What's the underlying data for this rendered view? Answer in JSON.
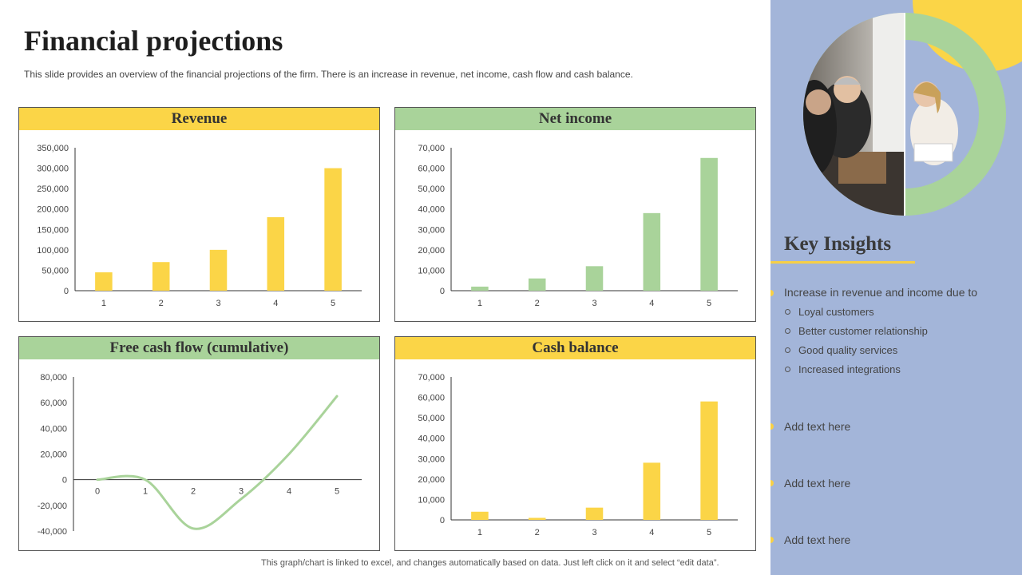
{
  "header": {
    "title": "Financial projections",
    "subtitle": "This slide provides an overview of the financial projections of the firm. There is an increase in revenue, net income, cash flow and  cash balance."
  },
  "colors": {
    "yellow": "#fbd547",
    "green": "#a9d39a",
    "sidebar": "#a3b5d9"
  },
  "chart_data": [
    {
      "id": "revenue",
      "type": "bar",
      "title": "Revenue",
      "categories": [
        "1",
        "2",
        "3",
        "4",
        "5"
      ],
      "values": [
        45000,
        70000,
        100000,
        180000,
        300000
      ],
      "ylim": [
        0,
        350000
      ],
      "yticks": [
        0,
        50000,
        100000,
        150000,
        200000,
        250000,
        300000,
        350000
      ],
      "ytick_labels": [
        "0",
        "50,000",
        "100,000",
        "150,000",
        "200,000",
        "250,000",
        "300,000",
        "350,000"
      ],
      "color": "#fbd547"
    },
    {
      "id": "net-income",
      "type": "bar",
      "title": "Net income",
      "categories": [
        "1",
        "2",
        "3",
        "4",
        "5"
      ],
      "values": [
        2000,
        6000,
        12000,
        38000,
        65000
      ],
      "ylim": [
        0,
        70000
      ],
      "yticks": [
        0,
        10000,
        20000,
        30000,
        40000,
        50000,
        60000,
        70000
      ],
      "ytick_labels": [
        "0",
        "10,000",
        "20,000",
        "30,000",
        "40,000",
        "50,000",
        "60,000",
        "70,000"
      ],
      "color": "#a9d39a"
    },
    {
      "id": "free-cash-flow",
      "type": "line",
      "title": "Free cash flow (cumulative)",
      "categories": [
        "0",
        "1",
        "2",
        "3",
        "4",
        "5"
      ],
      "x": [
        0,
        1,
        2,
        3,
        4,
        5
      ],
      "values": [
        0,
        0,
        -38000,
        -15000,
        20000,
        65000
      ],
      "ylim": [
        -40000,
        80000
      ],
      "yticks": [
        -40000,
        -20000,
        0,
        20000,
        40000,
        60000,
        80000
      ],
      "ytick_labels": [
        "-40,000",
        "-20,000",
        "0",
        "20,000",
        "40,000",
        "60,000",
        "80,000"
      ],
      "color": "#a9d39a"
    },
    {
      "id": "cash-balance",
      "type": "bar",
      "title": "Cash balance",
      "categories": [
        "1",
        "2",
        "3",
        "4",
        "5"
      ],
      "values": [
        4000,
        1000,
        6000,
        28000,
        58000
      ],
      "ylim": [
        0,
        70000
      ],
      "yticks": [
        0,
        10000,
        20000,
        30000,
        40000,
        50000,
        60000,
        70000
      ],
      "ytick_labels": [
        "0",
        "10,000",
        "20,000",
        "30,000",
        "40,000",
        "50,000",
        "60,000",
        "70,000"
      ],
      "color": "#fbd547"
    }
  ],
  "insights": {
    "title": "Key Insights",
    "main_point": "Increase in revenue and income due to",
    "sub_points": [
      "Loyal customers",
      "Better customer relationship",
      "Good quality services",
      "Increased integrations"
    ],
    "placeholders": [
      "Add text here",
      "Add text here",
      "Add text here"
    ]
  },
  "footnote": "This graph/chart is linked to excel,  and changes automatically based on data. Just left click on it and select “edit data”."
}
